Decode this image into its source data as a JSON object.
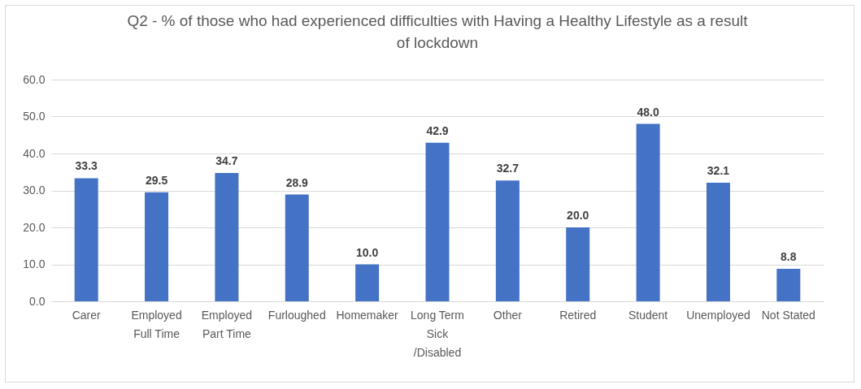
{
  "chart_data": {
    "type": "bar",
    "title": "Q2 - % of those who had experienced difficulties with Having a Healthy Lifestyle as a result of lockdown",
    "categories": [
      "Carer",
      "Employed Full Time",
      "Employed Part Time",
      "Furloughed",
      "Homemaker",
      "Long Term Sick /Disabled",
      "Other",
      "Retired",
      "Student",
      "Unemployed",
      "Not Stated"
    ],
    "values": [
      33.3,
      29.5,
      34.7,
      28.9,
      10.0,
      42.9,
      32.7,
      20.0,
      48.0,
      32.1,
      8.8
    ],
    "color": "#4472c4",
    "ylim": [
      0,
      60
    ],
    "yticks": [
      {
        "value": 0,
        "label": "0.0"
      },
      {
        "value": 10,
        "label": "10.0"
      },
      {
        "value": 20,
        "label": "20.0"
      },
      {
        "value": 30,
        "label": "30.0"
      },
      {
        "value": 40,
        "label": "40.0"
      },
      {
        "value": 50,
        "label": "50.0"
      },
      {
        "value": 60,
        "label": "60.0"
      }
    ],
    "value_labels": [
      "33.3",
      "29.5",
      "34.7",
      "28.9",
      "10.0",
      "42.9",
      "32.7",
      "20.0",
      "48.0",
      "32.1",
      "8.8"
    ],
    "grid": "y"
  }
}
